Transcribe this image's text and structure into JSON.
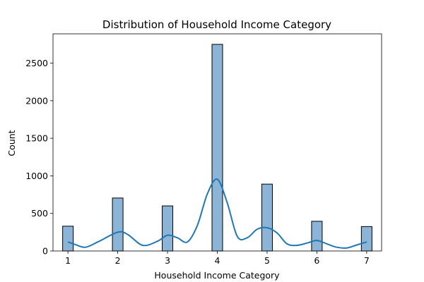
{
  "chart_data": {
    "type": "bar",
    "title": "Distribution of Household Income Category",
    "xlabel": "Household Income Category",
    "ylabel": "Count",
    "x_ticks": [
      1,
      2,
      3,
      4,
      5,
      6,
      7
    ],
    "y_ticks": [
      0,
      500,
      1000,
      1500,
      2000,
      2500
    ],
    "xlim": [
      0.7,
      7.3
    ],
    "ylim": [
      0,
      2890
    ],
    "grid": false,
    "categories": [
      1,
      2,
      3,
      4,
      5,
      6,
      7
    ],
    "values": [
      330,
      705,
      600,
      2750,
      890,
      395,
      325
    ],
    "bar_color": "#8bb4d6",
    "kde": {
      "x": [
        1,
        1.15,
        1.35,
        1.6,
        2,
        2.2,
        2.5,
        2.8,
        3,
        3.2,
        3.4,
        3.6,
        3.8,
        4,
        4.2,
        4.4,
        4.6,
        4.8,
        5,
        5.2,
        5.4,
        5.6,
        5.8,
        6,
        6.2,
        6.4,
        6.6,
        6.8,
        7
      ],
      "y": [
        120,
        85,
        50,
        120,
        250,
        220,
        75,
        130,
        210,
        175,
        120,
        340,
        760,
        955,
        640,
        195,
        175,
        290,
        310,
        240,
        95,
        75,
        105,
        140,
        95,
        50,
        40,
        80,
        120
      ],
      "color": "#1f77b4"
    }
  }
}
